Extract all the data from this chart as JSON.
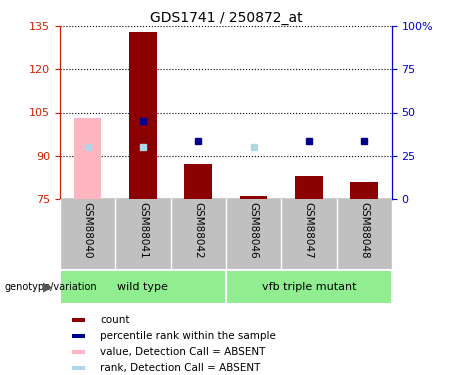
{
  "title": "GDS1741 / 250872_at",
  "samples": [
    "GSM88040",
    "GSM88041",
    "GSM88042",
    "GSM88046",
    "GSM88047",
    "GSM88048"
  ],
  "ylim_left": [
    75,
    135
  ],
  "ylim_right": [
    0,
    100
  ],
  "yticks_left": [
    75,
    90,
    105,
    120,
    135
  ],
  "yticks_right": [
    0,
    25,
    50,
    75,
    100
  ],
  "ytick_labels_right": [
    "0",
    "25",
    "50",
    "75",
    "100%"
  ],
  "bar_bottom": 75,
  "count_values": [
    null,
    133,
    87,
    76,
    83,
    81
  ],
  "count_absent": [
    103,
    null,
    null,
    null,
    null,
    null
  ],
  "rank_values": [
    null,
    102,
    95,
    null,
    95,
    95
  ],
  "rank_absent": [
    93,
    93,
    null,
    93,
    null,
    null
  ],
  "bar_color_present": "#8B0000",
  "bar_color_absent": "#FFB6C1",
  "rank_color_present": "#00008B",
  "rank_color_absent": "#ADD8E6",
  "left_axis_color": "#CC2200",
  "right_axis_color": "#0000CC",
  "group_wt_color": "#90EE90",
  "group_mut_color": "#90EE90",
  "sample_band_color": "#C0C0C0",
  "legend_items": [
    {
      "label": "count",
      "color": "#8B0000"
    },
    {
      "label": "percentile rank within the sample",
      "color": "#00008B"
    },
    {
      "label": "value, Detection Call = ABSENT",
      "color": "#FFB6C1"
    },
    {
      "label": "rank, Detection Call = ABSENT",
      "color": "#ADD8E6"
    }
  ]
}
